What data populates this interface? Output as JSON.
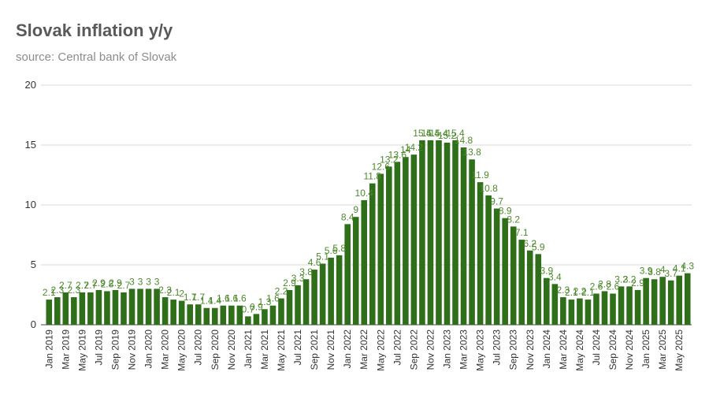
{
  "chart_data": {
    "type": "bar",
    "title": "Slovak inflation y/y",
    "subtitle": "source: Central bank of Slovak",
    "xlabel": "",
    "ylabel": "",
    "ylim": [
      0,
      20
    ],
    "yticks": [
      0,
      5,
      10,
      15,
      20
    ],
    "grid": true,
    "legend": "none",
    "bar_color": "#2f6f1a",
    "label_color": "#4d8a2c",
    "categories": [
      "Jan 2019",
      "Feb 2019",
      "Mar 2019",
      "Apr 2019",
      "May 2019",
      "Jun 2019",
      "Jul 2019",
      "Aug 2019",
      "Sep 2019",
      "Oct 2019",
      "Nov 2019",
      "Dec 2019",
      "Jan 2020",
      "Feb 2020",
      "Mar 2020",
      "Apr 2020",
      "May 2020",
      "Jun 2020",
      "Jul 2020",
      "Aug 2020",
      "Sep 2020",
      "Oct 2020",
      "Nov 2020",
      "Dec 2020",
      "Jan 2021",
      "Feb 2021",
      "Mar 2021",
      "Apr 2021",
      "May 2021",
      "Jun 2021",
      "Jul 2021",
      "Aug 2021",
      "Sep 2021",
      "Oct 2021",
      "Nov 2021",
      "Dec 2021",
      "Jan 2022",
      "Feb 2022",
      "Mar 2022",
      "Apr 2022",
      "May 2022",
      "Jun 2022",
      "Jul 2022",
      "Aug 2022",
      "Sep 2022",
      "Oct 2022",
      "Nov 2022",
      "Dec 2022",
      "Jan 2023",
      "Feb 2023",
      "Mar 2023",
      "Apr 2023",
      "May 2023",
      "Jun 2023",
      "Jul 2023",
      "Aug 2023",
      "Sep 2023",
      "Oct 2023",
      "Nov 2023",
      "Dec 2023",
      "Jan 2024",
      "Feb 2024",
      "Mar 2024",
      "Apr 2024",
      "May 2024",
      "Jun 2024",
      "Jul 2024",
      "Aug 2024",
      "Sep 2024",
      "Oct 2024",
      "Nov 2024",
      "Dec 2024",
      "Jan 2025",
      "Feb 2025",
      "Mar 2025",
      "Apr 2025",
      "May 2025",
      "Jun 2025"
    ],
    "values": [
      2.1,
      2.3,
      2.7,
      2.3,
      2.7,
      2.7,
      2.9,
      2.8,
      2.9,
      2.7,
      3,
      3,
      3,
      3,
      2.3,
      2.1,
      2,
      1.7,
      1.7,
      1.4,
      1.4,
      1.6,
      1.6,
      1.6,
      0.7,
      0.9,
      1.3,
      1.6,
      2.2,
      2.9,
      3.3,
      3.8,
      4.6,
      5.1,
      5.6,
      5.8,
      8.4,
      9,
      10.4,
      11.8,
      12.6,
      13.2,
      13.6,
      14,
      14.2,
      15.4,
      15.4,
      15.4,
      15.2,
      15.4,
      14.8,
      13.8,
      11.9,
      10.8,
      9.7,
      8.9,
      8.2,
      7.1,
      6.2,
      5.9,
      3.9,
      3.4,
      2.3,
      2.1,
      2.2,
      2.1,
      2.6,
      2.8,
      2.6,
      3.2,
      3.2,
      2.9,
      3.9,
      3.8,
      4,
      3.7,
      4.1,
      4.3
    ],
    "x_tick_labels": [
      "Jan 2019",
      "Mar 2019",
      "May 2019",
      "Jul 2019",
      "Sep 2019",
      "Nov 2019",
      "Jan 2020",
      "Mar 2020",
      "May 2020",
      "Jul 2020",
      "Sep 2020",
      "Nov 2020",
      "Jan 2021",
      "Mar 2021",
      "May 2021",
      "Jul 2021",
      "Sep 2021",
      "Nov 2021",
      "Jan 2022",
      "Mar 2022",
      "May 2022",
      "Jul 2022",
      "Sep 2022",
      "Nov 2022",
      "Jan 2023",
      "Mar 2023",
      "May 2023",
      "Jul 2023",
      "Sep 2023",
      "Nov 2023",
      "Jan 2024",
      "Mar 2024",
      "May 2024",
      "Jul 2024",
      "Sep 2024",
      "Nov 2024",
      "Jan 2025",
      "Mar 2025",
      "May 2025"
    ]
  }
}
